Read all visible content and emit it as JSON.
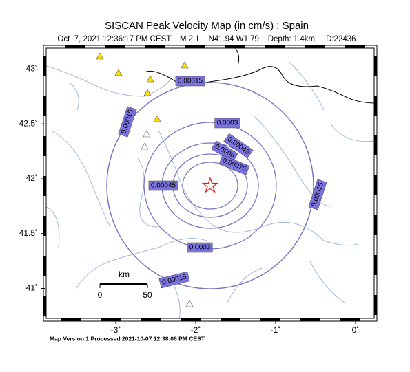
{
  "title": "SISCAN Peak Velocity Map (in cm/s) : Spain",
  "subtitle": "Oct  7, 2021 12:36:17 PM CEST    M 2.1    N41.94 W1.79    Depth: 1.4km    ID:22436",
  "map": {
    "lon_ticks": [
      {
        "value": -3,
        "label": "-3˚"
      },
      {
        "value": -2,
        "label": "-2˚"
      },
      {
        "value": -1,
        "label": "-1˚"
      },
      {
        "value": 0,
        "label": "0˚"
      }
    ],
    "lat_ticks": [
      {
        "value": 43,
        "label": "43˚"
      },
      {
        "value": 42.5,
        "label": "42.5˚"
      },
      {
        "value": 42,
        "label": "42˚"
      },
      {
        "value": 41.5,
        "label": "41.5˚"
      },
      {
        "value": 41,
        "label": "41˚"
      }
    ],
    "contours": [
      0.00015,
      0.0003,
      0.00045,
      0.0006,
      0.00075
    ]
  },
  "scale_bar": {
    "unit": "km",
    "labels": [
      "0",
      "50"
    ]
  },
  "footer": "Map Version 1 Processed 2021-10-07 12:38:06 PM CEST"
}
